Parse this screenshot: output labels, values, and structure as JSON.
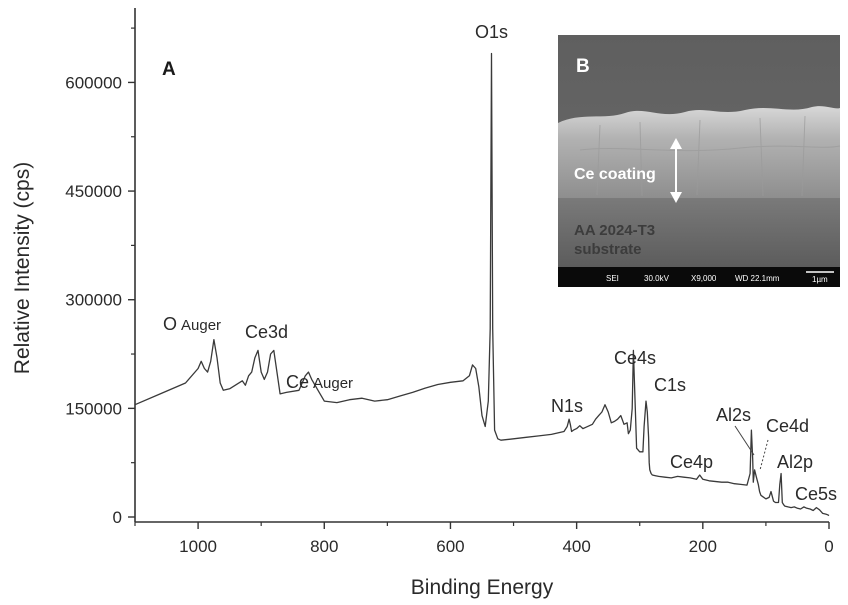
{
  "chart_data": {
    "type": "line",
    "xlabel": "Binding Energy",
    "ylabel": "Relative Intensity (cps)",
    "xlim": [
      1100,
      0
    ],
    "ylim": [
      0,
      700000
    ],
    "x_ticks": [
      1000,
      800,
      600,
      400,
      200,
      0
    ],
    "y_ticks": [
      0,
      150000,
      300000,
      450000,
      600000
    ],
    "x_tick_labels": [
      "1000",
      "800",
      "600",
      "400",
      "200",
      "0"
    ],
    "y_tick_labels": [
      "0",
      "150000",
      "300000",
      "450000",
      "600000"
    ],
    "grid": false,
    "series": [
      {
        "x": [
          1100,
          1060,
          1020,
          1000,
          995,
          990,
          985,
          980,
          975,
          970,
          965,
          960,
          950,
          930,
          925,
          920,
          915,
          910,
          905,
          900,
          895,
          890,
          885,
          880,
          870,
          860,
          840,
          830,
          825,
          820,
          810,
          800,
          780,
          760,
          740,
          720,
          700,
          680,
          660,
          640,
          620,
          600,
          580,
          570,
          565,
          560,
          555,
          550,
          545,
          540,
          537,
          535,
          533,
          530,
          525,
          520,
          500,
          480,
          460,
          440,
          420,
          415,
          412,
          410,
          408,
          405,
          400,
          395,
          390,
          385,
          375,
          370,
          365,
          360,
          355,
          350,
          345,
          340,
          335,
          330,
          325,
          320,
          318,
          315,
          312,
          310,
          307,
          305,
          300,
          295,
          293,
          290,
          288,
          286,
          285,
          284,
          282,
          280,
          275,
          270,
          260,
          250,
          240,
          230,
          220,
          210,
          205,
          200,
          190,
          170,
          160,
          150,
          140,
          130,
          125,
          123,
          121,
          120,
          118,
          115,
          112,
          110,
          108,
          105,
          100,
          95,
          92,
          88,
          85,
          80,
          78,
          76,
          75,
          74,
          72,
          70,
          65,
          60,
          55,
          50,
          45,
          40,
          35,
          30,
          25,
          20,
          15,
          12,
          10,
          5,
          2,
          0
        ],
        "y": [
          155000,
          170000,
          185000,
          205000,
          215000,
          205000,
          200000,
          215000,
          245000,
          220000,
          185000,
          175000,
          177000,
          188000,
          182000,
          195000,
          200000,
          220000,
          230000,
          200000,
          190000,
          200000,
          225000,
          230000,
          170000,
          172000,
          175000,
          195000,
          200000,
          190000,
          175000,
          160000,
          158000,
          162000,
          164000,
          160000,
          162000,
          167000,
          172000,
          178000,
          183000,
          186000,
          188000,
          195000,
          210000,
          205000,
          180000,
          140000,
          125000,
          160000,
          260000,
          640000,
          260000,
          120000,
          108000,
          106000,
          108000,
          110000,
          112000,
          114000,
          118000,
          125000,
          135000,
          128000,
          118000,
          120000,
          122000,
          126000,
          122000,
          124000,
          128000,
          135000,
          140000,
          145000,
          155000,
          145000,
          130000,
          132000,
          135000,
          140000,
          128000,
          130000,
          115000,
          120000,
          150000,
          230000,
          150000,
          95000,
          90000,
          90000,
          125000,
          160000,
          145000,
          110000,
          75000,
          65000,
          60000,
          58000,
          57000,
          56000,
          55000,
          54000,
          56000,
          55000,
          54000,
          52000,
          58000,
          52000,
          50000,
          48000,
          48000,
          46000,
          45000,
          44000,
          60000,
          120000,
          80000,
          48000,
          65000,
          55000,
          45000,
          35000,
          30000,
          28000,
          25000,
          27000,
          35000,
          22000,
          20000,
          20000,
          45000,
          60000,
          40000,
          20000,
          17000,
          15000,
          14000,
          13000,
          14000,
          12000,
          11000,
          14000,
          12000,
          11000,
          9000,
          13000,
          10000,
          7000,
          5000,
          4000,
          3000,
          2000
        ]
      }
    ],
    "annotations": [
      {
        "text": "O",
        "sub": "Auger",
        "x": 1000,
        "y": 245000
      },
      {
        "text": "Ce3d",
        "x": 895,
        "y": 230000
      },
      {
        "text": "Ce",
        "sub": "Auger",
        "x": 810,
        "y": 200000
      },
      {
        "text": "O1s",
        "x": 537,
        "y": 640000
      },
      {
        "text": "N1s",
        "x": 410,
        "y": 135000
      },
      {
        "text": "Ce4s",
        "x": 307,
        "y": 230000
      },
      {
        "text": "C1s",
        "x": 285,
        "y": 160000
      },
      {
        "text": "Ce4p",
        "x": 215,
        "y": 58000
      },
      {
        "text": "Al2s",
        "x": 121,
        "y": 120000
      },
      {
        "text": "Ce4d",
        "x": 110,
        "y": 65000
      },
      {
        "text": "Al2p",
        "x": 75,
        "y": 60000
      },
      {
        "text": "Ce5s",
        "x": 20,
        "y": 14000
      }
    ]
  },
  "panel_a_label": "A",
  "inset": {
    "panel_label": "B",
    "coating_label": "Ce coating",
    "substrate_line1": "AA 2024-T3",
    "substrate_line2": "substrate",
    "scalebar": {
      "detector": "SEI",
      "voltage": "30.0kV",
      "magnification": "X9,000",
      "working_distance": "WD 22.1mm",
      "scale": "1µm"
    }
  }
}
